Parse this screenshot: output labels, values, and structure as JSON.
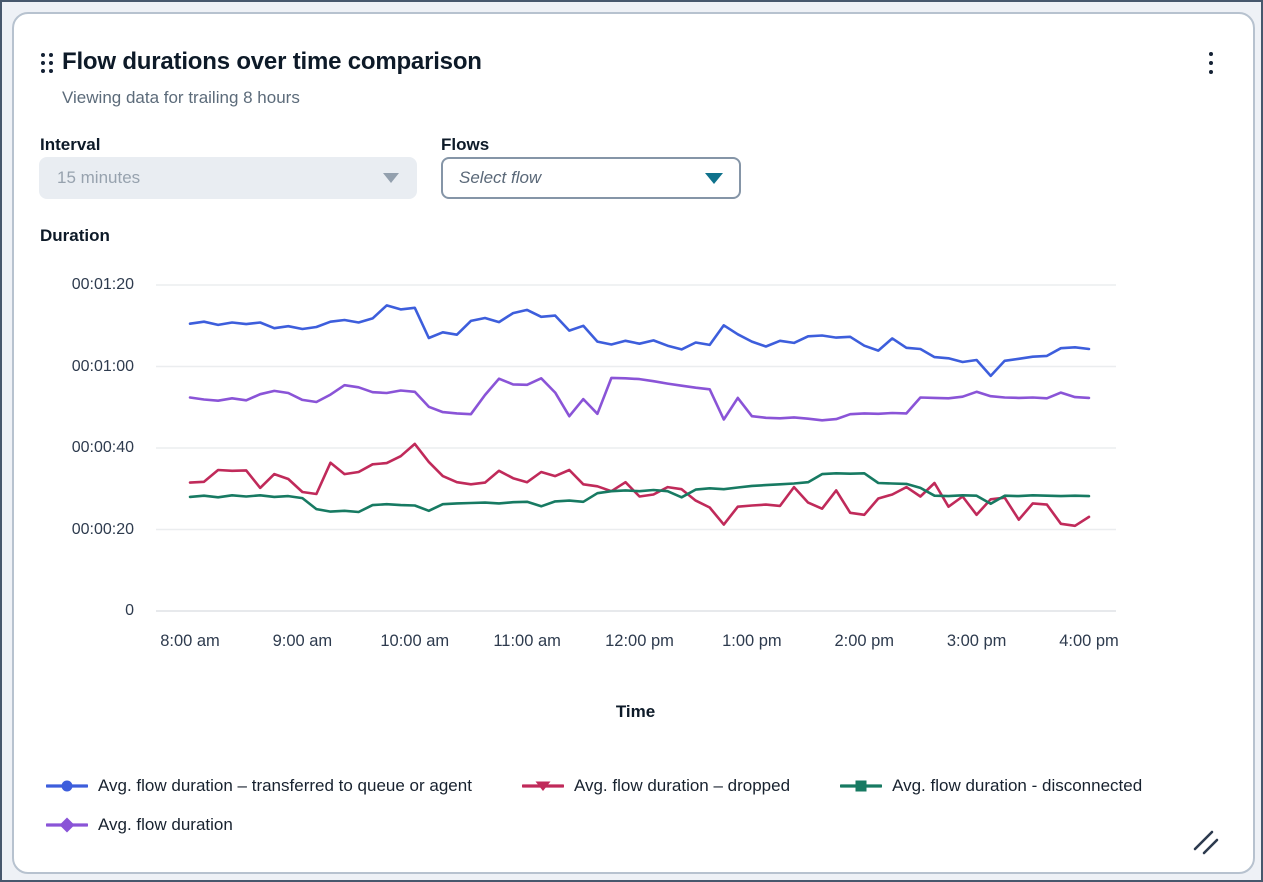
{
  "card": {
    "title": "Flow durations over time comparison",
    "subtitle": "Viewing data for trailing 8 hours"
  },
  "controls": {
    "interval_label": "Interval",
    "interval_value": "15 minutes",
    "interval_disabled": true,
    "flows_label": "Flows",
    "flows_placeholder": "Select flow"
  },
  "icons": {
    "drag": "drag-handle-icon",
    "menu": "kebab-menu-icon",
    "interval_caret": "chevron-down-icon",
    "flows_caret": "chevron-down-icon",
    "resize": "resize-handle-icon"
  },
  "colors": {
    "series_blue": "#3d5edc",
    "series_red": "#c02a5a",
    "series_teal": "#177a62",
    "series_purple": "#8a54d7",
    "flows_accent": "#0f728c",
    "card_border": "#b7c2cf",
    "grid_line": "#ebedef",
    "baseline": "#dfe2e5",
    "text_primary": "#0d1a28",
    "text_secondary": "#5c6b7a",
    "disabled_bg": "#e9edf2",
    "disabled_text": "#97a2ae"
  },
  "chart_data": {
    "type": "line",
    "title": "",
    "ylabel": "Duration",
    "xlabel": "Time",
    "ylim": [
      0,
      84
    ],
    "grid": true,
    "legend_position": "bottom",
    "y_ticks": [
      "00:01:20",
      "00:01:00",
      "00:00:40",
      "00:00:20",
      "0"
    ],
    "y_tick_values_seconds": [
      80,
      60,
      40,
      20,
      0
    ],
    "x_ticks": [
      "8:00 am",
      "9:00 am",
      "10:00 am",
      "11:00 am",
      "12:00 pm",
      "1:00 pm",
      "2:00 pm",
      "3:00 pm",
      "4:00 pm"
    ],
    "x_range": [
      "8:00 am",
      "4:00 pm"
    ],
    "units": "duration hh:mm:ss (values below in seconds)",
    "series": [
      {
        "name": "Avg. flow duration – transferred to queue or agent",
        "color": "#3d5edc",
        "marker": "circle",
        "values": [
          70.5,
          71.0,
          70.2,
          70.8,
          70.4,
          70.8,
          69.4,
          69.9,
          69.2,
          69.7,
          71.0,
          71.4,
          70.8,
          71.8,
          75.0,
          74.0,
          74.4,
          67.0,
          68.4,
          67.8,
          71.2,
          71.9,
          70.9,
          73.1,
          73.9,
          72.2,
          72.5,
          68.8,
          70.0,
          66.1,
          65.4,
          66.3,
          65.6,
          66.4,
          65.1,
          64.2,
          65.9,
          65.3,
          70.1,
          67.9,
          66.1,
          64.9,
          66.3,
          65.8,
          67.4,
          67.6,
          67.1,
          67.3,
          65.1,
          63.9,
          66.9,
          64.6,
          64.3,
          62.3,
          62.0,
          61.1,
          61.6,
          57.7,
          61.4,
          61.9,
          62.4,
          62.6,
          64.5,
          64.7,
          64.3
        ]
      },
      {
        "name": "Avg. flow duration – dropped",
        "color": "#c02a5a",
        "marker": "triangle-down",
        "values": [
          31.5,
          31.7,
          34.6,
          34.4,
          34.5,
          30.2,
          33.6,
          32.4,
          29.2,
          28.7,
          36.4,
          33.6,
          34.1,
          36.0,
          36.3,
          38.0,
          41.0,
          36.6,
          33.1,
          31.6,
          31.1,
          31.5,
          34.4,
          32.6,
          31.6,
          34.1,
          33.1,
          34.6,
          31.1,
          30.6,
          29.4,
          31.6,
          28.1,
          28.6,
          30.4,
          29.9,
          27.1,
          25.4,
          21.2,
          25.6,
          25.9,
          26.1,
          25.8,
          30.4,
          26.6,
          25.1,
          29.6,
          24.1,
          23.6,
          27.6,
          28.6,
          30.4,
          28.1,
          31.4,
          25.6,
          28.1,
          23.6,
          27.4,
          27.8,
          22.4,
          26.4,
          26.1,
          21.4,
          20.9,
          23.1
        ]
      },
      {
        "name": "Avg. flow duration - disconnected",
        "color": "#177a62",
        "marker": "square",
        "values": [
          28.0,
          28.3,
          27.9,
          28.4,
          28.1,
          28.4,
          28.0,
          28.2,
          27.7,
          25.0,
          24.4,
          24.6,
          24.3,
          26.0,
          26.2,
          26.0,
          25.9,
          24.6,
          26.2,
          26.4,
          26.5,
          26.6,
          26.4,
          26.7,
          26.8,
          25.7,
          26.9,
          27.1,
          26.8,
          28.9,
          29.4,
          29.6,
          29.4,
          29.7,
          29.4,
          27.9,
          29.8,
          30.1,
          29.9,
          30.3,
          30.7,
          30.9,
          31.1,
          31.3,
          31.6,
          33.6,
          33.8,
          33.7,
          33.8,
          31.4,
          31.3,
          31.2,
          30.2,
          28.3,
          28.2,
          28.4,
          28.3,
          26.3,
          28.3,
          28.2,
          28.4,
          28.3,
          28.2,
          28.3,
          28.2
        ]
      },
      {
        "name": "Avg. flow duration",
        "color": "#8a54d7",
        "marker": "diamond",
        "values": [
          52.4,
          51.9,
          51.6,
          52.2,
          51.7,
          53.2,
          54.0,
          53.5,
          51.8,
          51.3,
          53.1,
          55.4,
          54.9,
          53.7,
          53.5,
          54.1,
          53.8,
          50.1,
          48.8,
          48.5,
          48.3,
          53.0,
          57.0,
          55.6,
          55.5,
          57.1,
          53.6,
          47.8,
          52.0,
          48.4,
          57.2,
          57.1,
          56.9,
          56.4,
          55.8,
          55.3,
          54.8,
          54.4,
          47.0,
          52.3,
          47.8,
          47.4,
          47.3,
          47.5,
          47.2,
          46.8,
          47.1,
          48.3,
          48.5,
          48.4,
          48.6,
          48.5,
          52.4,
          52.3,
          52.2,
          52.6,
          53.8,
          52.7,
          52.4,
          52.3,
          52.4,
          52.2,
          53.6,
          52.5,
          52.3
        ]
      }
    ]
  }
}
